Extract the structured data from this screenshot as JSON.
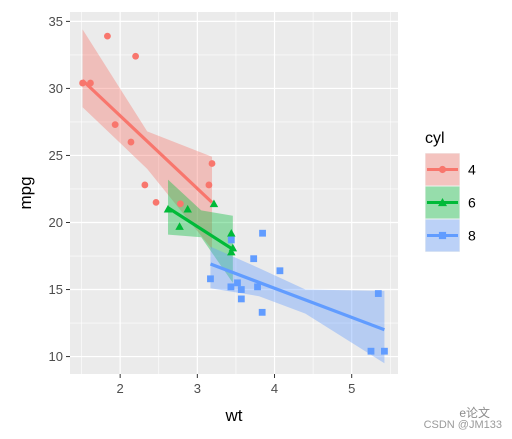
{
  "chart_data": {
    "type": "scatter",
    "title": "",
    "xlabel": "wt",
    "ylabel": "mpg",
    "xlim": [
      1.35,
      5.6
    ],
    "ylim": [
      8.7,
      35.7
    ],
    "x_ticks": [
      2,
      3,
      4,
      5
    ],
    "y_ticks": [
      10,
      15,
      20,
      25,
      30,
      35
    ],
    "x_tick_labels": [
      "2",
      "3",
      "4",
      "5"
    ],
    "y_tick_labels": [
      "10",
      "15",
      "20",
      "25",
      "30",
      "35"
    ],
    "grid": true,
    "legend": {
      "title": "cyl",
      "position": "right"
    },
    "series": [
      {
        "name": "4",
        "color": "#F8766D",
        "marker": "circle",
        "points": [
          [
            2.32,
            22.8
          ],
          [
            3.19,
            24.4
          ],
          [
            3.15,
            22.8
          ],
          [
            2.2,
            32.4
          ],
          [
            1.615,
            30.4
          ],
          [
            1.835,
            33.9
          ],
          [
            2.465,
            21.5
          ],
          [
            1.935,
            27.3
          ],
          [
            2.14,
            26.0
          ],
          [
            1.513,
            30.4
          ],
          [
            2.78,
            21.4
          ]
        ],
        "fit": [
          [
            1.513,
            30.6
          ],
          [
            3.19,
            21.5
          ]
        ],
        "band_upper": [
          [
            1.513,
            34.4
          ],
          [
            2.35,
            26.8
          ],
          [
            3.19,
            24.9
          ]
        ],
        "band_lower": [
          [
            1.513,
            28.6
          ],
          [
            2.35,
            24.0
          ],
          [
            3.19,
            18.0
          ]
        ]
      },
      {
        "name": "6",
        "color": "#00BA38",
        "marker": "triangle",
        "points": [
          [
            2.62,
            21.0
          ],
          [
            2.875,
            21.0
          ],
          [
            3.215,
            21.4
          ],
          [
            3.46,
            18.1
          ],
          [
            3.44,
            19.2
          ],
          [
            3.44,
            17.8
          ],
          [
            2.77,
            19.7
          ]
        ],
        "fit": [
          [
            2.62,
            21.1
          ],
          [
            3.46,
            18.0
          ]
        ],
        "band_upper": [
          [
            2.62,
            23.2
          ],
          [
            3.05,
            20.9
          ],
          [
            3.46,
            20.5
          ]
        ],
        "band_lower": [
          [
            2.62,
            19.1
          ],
          [
            3.05,
            18.9
          ],
          [
            3.46,
            15.5
          ]
        ]
      },
      {
        "name": "8",
        "color": "#619CFF",
        "marker": "square",
        "points": [
          [
            3.44,
            18.7
          ],
          [
            3.57,
            14.3
          ],
          [
            4.07,
            16.4
          ],
          [
            3.73,
            17.3
          ],
          [
            3.78,
            15.2
          ],
          [
            5.25,
            10.4
          ],
          [
            5.424,
            10.4
          ],
          [
            5.345,
            14.7
          ],
          [
            3.52,
            15.5
          ],
          [
            3.435,
            15.2
          ],
          [
            3.84,
            13.3
          ],
          [
            3.845,
            19.2
          ],
          [
            3.17,
            15.8
          ],
          [
            3.57,
            15.0
          ]
        ],
        "fit": [
          [
            3.17,
            16.9
          ],
          [
            5.424,
            12.0
          ]
        ],
        "band_upper": [
          [
            3.17,
            18.2
          ],
          [
            3.8,
            16.6
          ],
          [
            4.4,
            15.0
          ],
          [
            5.424,
            14.9
          ]
        ],
        "band_lower": [
          [
            3.17,
            15.1
          ],
          [
            3.8,
            14.5
          ],
          [
            4.4,
            13.2
          ],
          [
            5.424,
            9.5
          ]
        ]
      }
    ]
  },
  "watermark": {
    "line1": "e论文",
    "line2": "CSDN @JM133"
  }
}
